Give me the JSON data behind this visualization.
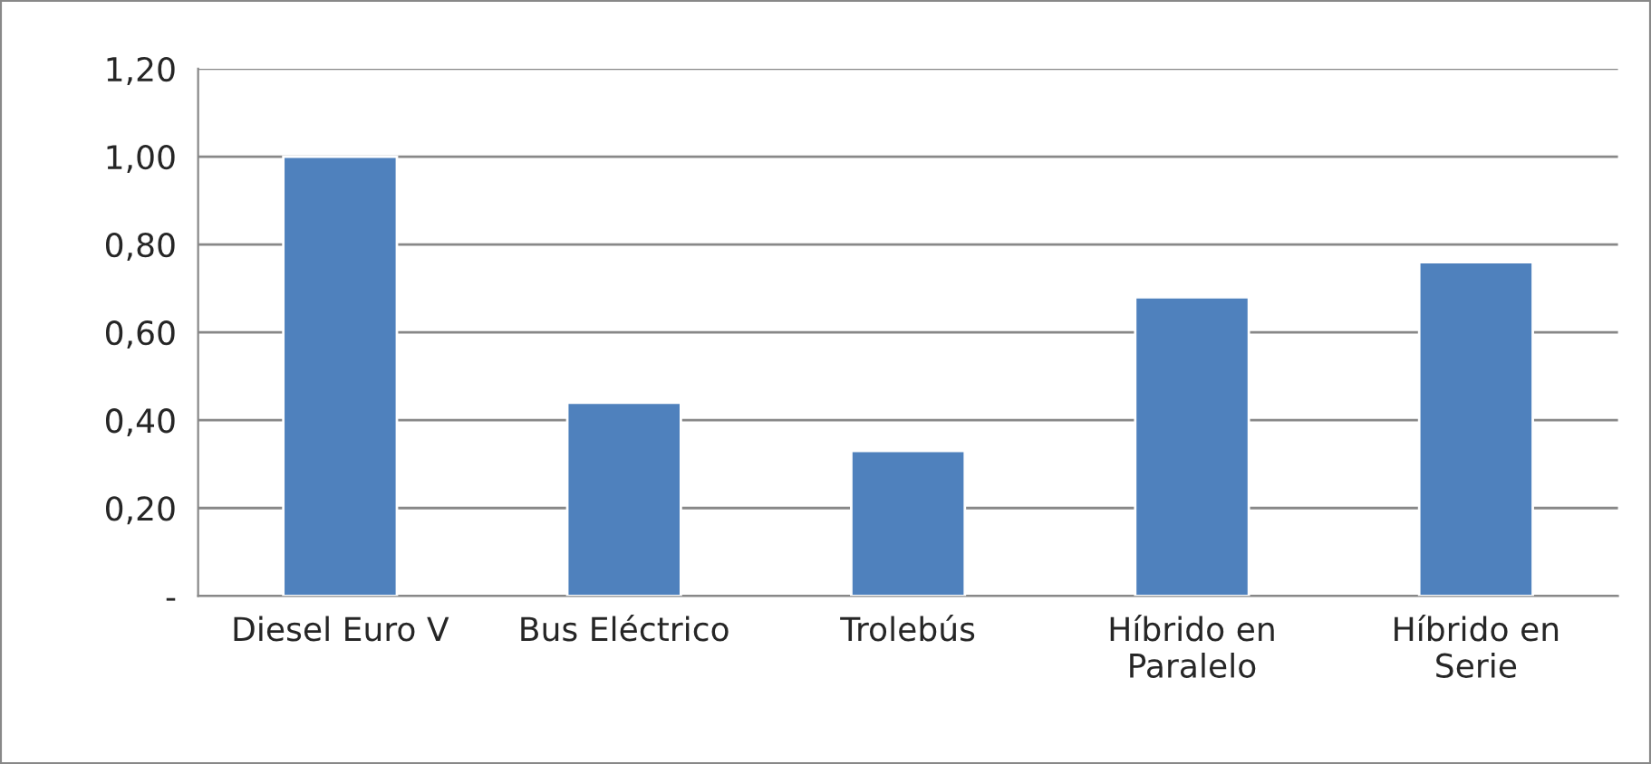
{
  "chart_data": {
    "type": "bar",
    "categories": [
      "Diesel Euro V",
      "Bus Eléctrico",
      "Trolebús",
      "Híbrido en\nParalelo",
      "Híbrido en\nSerie"
    ],
    "values": [
      1.0,
      0.44,
      0.33,
      0.68,
      0.76
    ],
    "color": "#4f81bd",
    "ylim": [
      0,
      1.2
    ],
    "yticks": [
      {
        "value": 0,
        "label": "-"
      },
      {
        "value": 0.2,
        "label": "0,20"
      },
      {
        "value": 0.4,
        "label": "0,40"
      },
      {
        "value": 0.6,
        "label": "0,60"
      },
      {
        "value": 0.8,
        "label": "0,80"
      },
      {
        "value": 1.0,
        "label": "1,00"
      },
      {
        "value": 1.2,
        "label": "1,20"
      }
    ],
    "grid": "y"
  }
}
